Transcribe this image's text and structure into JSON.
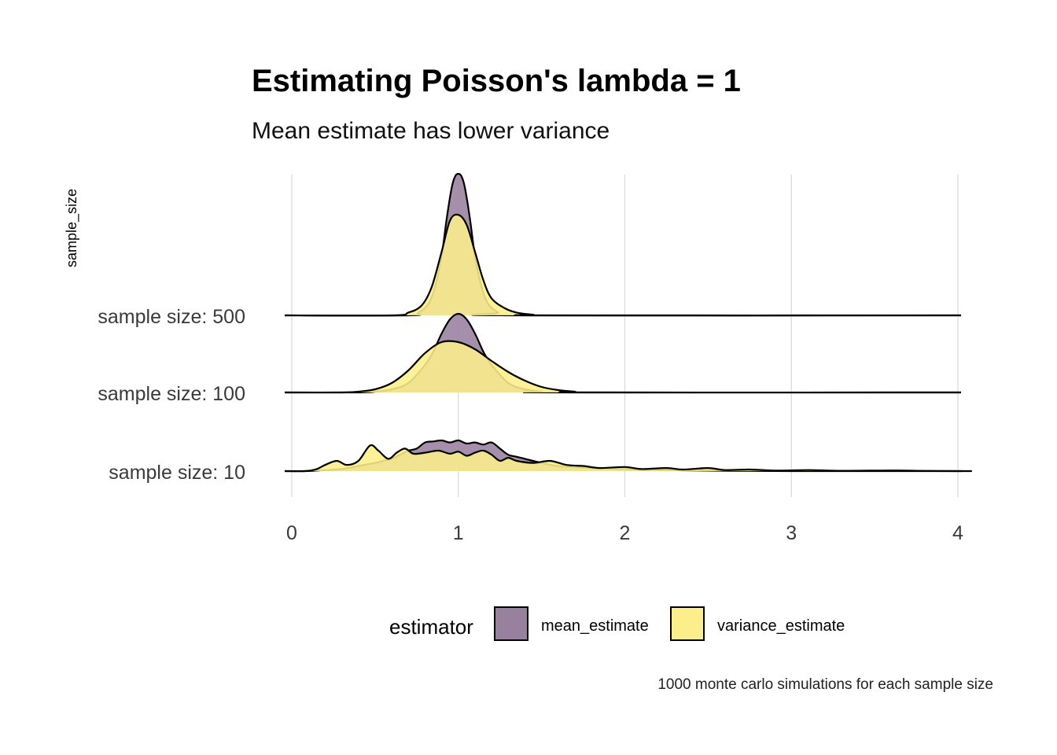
{
  "chart_data": {
    "type": "ridgeline-density",
    "title": "Estimating Poisson's lambda = 1",
    "subtitle": "Mean estimate has lower variance",
    "ylabel": "sample_size",
    "caption": "1000 monte carlo simulations for each sample size",
    "xlim": [
      0,
      4
    ],
    "x_ticks": [
      0,
      1,
      2,
      3,
      4
    ],
    "grid": "vertical major",
    "legend": {
      "title": "estimator",
      "position": "bottom",
      "entries": [
        {
          "label": "mean_estimate",
          "color": "#98809F"
        },
        {
          "label": "variance_estimate",
          "color": "#FCEF8B"
        }
      ]
    },
    "rows": [
      {
        "label": "sample size: 10",
        "n": 10,
        "series": [
          {
            "name": "mean_estimate",
            "color": "#98809F",
            "points": [
              [
                0.08,
                0.0
              ],
              [
                0.2,
                0.01
              ],
              [
                0.3,
                0.02
              ],
              [
                0.4,
                0.05
              ],
              [
                0.5,
                0.08
              ],
              [
                0.55,
                0.1
              ],
              [
                0.6,
                0.12
              ],
              [
                0.65,
                0.16
              ],
              [
                0.7,
                0.2
              ],
              [
                0.75,
                0.22
              ],
              [
                0.8,
                0.28
              ],
              [
                0.85,
                0.29
              ],
              [
                0.9,
                0.3
              ],
              [
                0.95,
                0.28
              ],
              [
                1.0,
                0.3
              ],
              [
                1.05,
                0.27
              ],
              [
                1.1,
                0.28
              ],
              [
                1.15,
                0.26
              ],
              [
                1.2,
                0.28
              ],
              [
                1.25,
                0.22
              ],
              [
                1.3,
                0.16
              ],
              [
                1.35,
                0.14
              ],
              [
                1.4,
                0.12
              ],
              [
                1.5,
                0.08
              ],
              [
                1.6,
                0.05
              ],
              [
                1.8,
                0.03
              ],
              [
                2.0,
                0.02
              ],
              [
                2.2,
                0.01
              ],
              [
                2.5,
                0.005
              ],
              [
                3.0,
                0.0
              ],
              [
                4.0,
                0.0
              ]
            ]
          },
          {
            "name": "variance_estimate",
            "color": "#FCEF8B",
            "points": [
              [
                0.08,
                0.0
              ],
              [
                0.15,
                0.02
              ],
              [
                0.2,
                0.06
              ],
              [
                0.27,
                0.1
              ],
              [
                0.33,
                0.06
              ],
              [
                0.4,
                0.1
              ],
              [
                0.47,
                0.25
              ],
              [
                0.52,
                0.2
              ],
              [
                0.58,
                0.12
              ],
              [
                0.63,
                0.18
              ],
              [
                0.68,
                0.22
              ],
              [
                0.73,
                0.17
              ],
              [
                0.8,
                0.18
              ],
              [
                0.88,
                0.2
              ],
              [
                0.95,
                0.17
              ],
              [
                1.0,
                0.19
              ],
              [
                1.05,
                0.15
              ],
              [
                1.1,
                0.18
              ],
              [
                1.15,
                0.2
              ],
              [
                1.2,
                0.16
              ],
              [
                1.25,
                0.1
              ],
              [
                1.3,
                0.13
              ],
              [
                1.35,
                0.1
              ],
              [
                1.45,
                0.08
              ],
              [
                1.55,
                0.1
              ],
              [
                1.65,
                0.06
              ],
              [
                1.75,
                0.05
              ],
              [
                1.85,
                0.03
              ],
              [
                2.0,
                0.04
              ],
              [
                2.1,
                0.02
              ],
              [
                2.25,
                0.03
              ],
              [
                2.35,
                0.015
              ],
              [
                2.5,
                0.03
              ],
              [
                2.6,
                0.01
              ],
              [
                2.75,
                0.015
              ],
              [
                2.9,
                0.005
              ],
              [
                3.1,
                0.01
              ],
              [
                3.3,
                0.003
              ],
              [
                3.6,
                0.006
              ],
              [
                3.8,
                0.002
              ],
              [
                4.0,
                0.0
              ]
            ]
          }
        ]
      },
      {
        "label": "sample size: 100",
        "n": 100,
        "series": [
          {
            "name": "mean_estimate",
            "color": "#98809F",
            "points": [
              [
                0.4,
                0.0
              ],
              [
                0.5,
                0.01
              ],
              [
                0.6,
                0.04
              ],
              [
                0.7,
                0.12
              ],
              [
                0.8,
                0.35
              ],
              [
                0.85,
                0.52
              ],
              [
                0.9,
                0.75
              ],
              [
                0.95,
                0.93
              ],
              [
                1.0,
                1.0
              ],
              [
                1.05,
                0.93
              ],
              [
                1.1,
                0.75
              ],
              [
                1.15,
                0.52
              ],
              [
                1.2,
                0.35
              ],
              [
                1.3,
                0.12
              ],
              [
                1.4,
                0.04
              ],
              [
                1.5,
                0.01
              ],
              [
                1.6,
                0.0
              ]
            ]
          },
          {
            "name": "variance_estimate",
            "color": "#FCEF8B",
            "points": [
              [
                0.3,
                0.0
              ],
              [
                0.4,
                0.01
              ],
              [
                0.5,
                0.04
              ],
              [
                0.6,
                0.12
              ],
              [
                0.7,
                0.28
              ],
              [
                0.8,
                0.5
              ],
              [
                0.9,
                0.64
              ],
              [
                1.0,
                0.64
              ],
              [
                1.1,
                0.55
              ],
              [
                1.2,
                0.4
              ],
              [
                1.3,
                0.26
              ],
              [
                1.4,
                0.15
              ],
              [
                1.5,
                0.07
              ],
              [
                1.6,
                0.03
              ],
              [
                1.7,
                0.01
              ],
              [
                1.8,
                0.0
              ]
            ]
          }
        ]
      },
      {
        "label": "sample size: 500",
        "n": 500,
        "series": [
          {
            "name": "mean_estimate",
            "color": "#98809F",
            "points": [
              [
                0.7,
                0.0
              ],
              [
                0.76,
                0.02
              ],
              [
                0.82,
                0.08
              ],
              [
                0.86,
                0.2
              ],
              [
                0.9,
                0.42
              ],
              [
                0.93,
                0.68
              ],
              [
                0.96,
                0.9
              ],
              [
                0.98,
                0.98
              ],
              [
                1.0,
                1.0
              ],
              [
                1.02,
                0.98
              ],
              [
                1.04,
                0.9
              ],
              [
                1.07,
                0.68
              ],
              [
                1.1,
                0.42
              ],
              [
                1.14,
                0.2
              ],
              [
                1.18,
                0.08
              ],
              [
                1.24,
                0.02
              ],
              [
                1.3,
                0.0
              ]
            ]
          },
          {
            "name": "variance_estimate",
            "color": "#FCEF8B",
            "points": [
              [
                0.6,
                0.0
              ],
              [
                0.7,
                0.02
              ],
              [
                0.78,
                0.07
              ],
              [
                0.84,
                0.2
              ],
              [
                0.9,
                0.45
              ],
              [
                0.95,
                0.67
              ],
              [
                1.0,
                0.71
              ],
              [
                1.05,
                0.64
              ],
              [
                1.1,
                0.45
              ],
              [
                1.15,
                0.25
              ],
              [
                1.2,
                0.12
              ],
              [
                1.28,
                0.05
              ],
              [
                1.35,
                0.02
              ],
              [
                1.45,
                0.005
              ],
              [
                1.55,
                0.0
              ]
            ]
          }
        ]
      }
    ]
  }
}
